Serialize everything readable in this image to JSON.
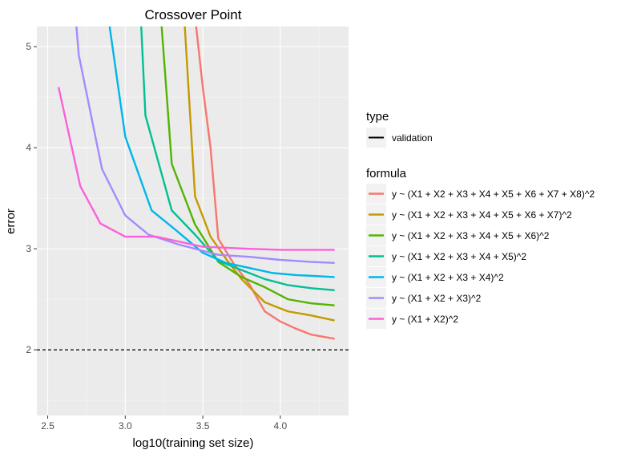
{
  "chart_data": {
    "type": "line",
    "title": "Crossover Point",
    "xlabel": "log10(training set size)",
    "ylabel": "error",
    "xlim": [
      2.43,
      4.44
    ],
    "ylim": [
      1.35,
      5.2
    ],
    "x_ticks": [
      2.5,
      3.0,
      3.5,
      4.0
    ],
    "x_tick_labels": [
      "2.5",
      "3.0",
      "3.5",
      "4.0"
    ],
    "y_ticks": [
      2,
      3,
      4,
      5
    ],
    "y_tick_labels": [
      "2",
      "3",
      "4",
      "5"
    ],
    "grid": true,
    "background_color": "#ebebeb",
    "reference_line": {
      "y": 2,
      "style": "dashed",
      "color": "#000000"
    },
    "legend_position": "right",
    "legends": [
      {
        "title": "type",
        "entries": [
          {
            "label": "validation",
            "style": "solid",
            "color": "#000000"
          }
        ]
      },
      {
        "title": "formula"
      }
    ],
    "series": [
      {
        "name": "y ~ (X1 + X2 + X3 + X4 + X5 + X6 + X7 + X8)^2",
        "color": "#F8766D",
        "x": [
          3.45,
          3.5,
          3.55,
          3.6,
          3.7,
          3.8,
          3.9,
          4.0,
          4.1,
          4.2,
          4.35
        ],
        "y": [
          5.3,
          4.6,
          4.0,
          3.1,
          2.85,
          2.65,
          2.38,
          2.28,
          2.21,
          2.15,
          2.11
        ]
      },
      {
        "name": "y ~ (X1 + X2 + X3 + X4 + X5 + X6 + X7)^2",
        "color": "#C49A00",
        "x": [
          3.38,
          3.45,
          3.55,
          3.65,
          3.75,
          3.9,
          4.05,
          4.2,
          4.35
        ],
        "y": [
          5.3,
          3.52,
          3.12,
          2.9,
          2.7,
          2.47,
          2.38,
          2.34,
          2.29
        ]
      },
      {
        "name": "y ~ (X1 + X2 + X3 + X4 + X5 + X6)^2",
        "color": "#53B400",
        "x": [
          3.23,
          3.3,
          3.45,
          3.6,
          3.75,
          3.9,
          4.05,
          4.2,
          4.35
        ],
        "y": [
          5.3,
          3.84,
          3.24,
          2.87,
          2.72,
          2.62,
          2.5,
          2.46,
          2.44
        ]
      },
      {
        "name": "y ~ (X1 + X2 + X3 + X4 + X5)^2",
        "color": "#00C094",
        "x": [
          3.1,
          3.13,
          3.3,
          3.45,
          3.6,
          3.75,
          3.9,
          4.05,
          4.2,
          4.35
        ],
        "y": [
          5.3,
          4.32,
          3.38,
          3.14,
          2.88,
          2.79,
          2.7,
          2.64,
          2.61,
          2.59
        ]
      },
      {
        "name": "y ~ (X1 + X2 + X3 + X4)^2",
        "color": "#00B6EB",
        "x": [
          2.89,
          3.0,
          3.17,
          3.33,
          3.5,
          3.65,
          3.8,
          3.95,
          4.1,
          4.35
        ],
        "y": [
          5.3,
          4.11,
          3.38,
          3.18,
          2.96,
          2.86,
          2.81,
          2.76,
          2.74,
          2.72
        ]
      },
      {
        "name": "y ~ (X1 + X2 + X3)^2",
        "color": "#A58AFF",
        "x": [
          2.68,
          2.7,
          2.85,
          3.0,
          3.15,
          3.35,
          3.6,
          3.8,
          4.0,
          4.2,
          4.35
        ],
        "y": [
          5.3,
          4.92,
          3.79,
          3.33,
          3.14,
          3.04,
          2.94,
          2.92,
          2.89,
          2.87,
          2.86
        ]
      },
      {
        "name": "y ~ (X1 + X2)^2",
        "color": "#FB61D7",
        "x": [
          2.57,
          2.71,
          2.84,
          3.0,
          3.2,
          3.5,
          3.8,
          4.0,
          4.35
        ],
        "y": [
          4.6,
          3.62,
          3.25,
          3.12,
          3.12,
          3.02,
          3.0,
          2.99,
          2.99
        ]
      }
    ]
  }
}
